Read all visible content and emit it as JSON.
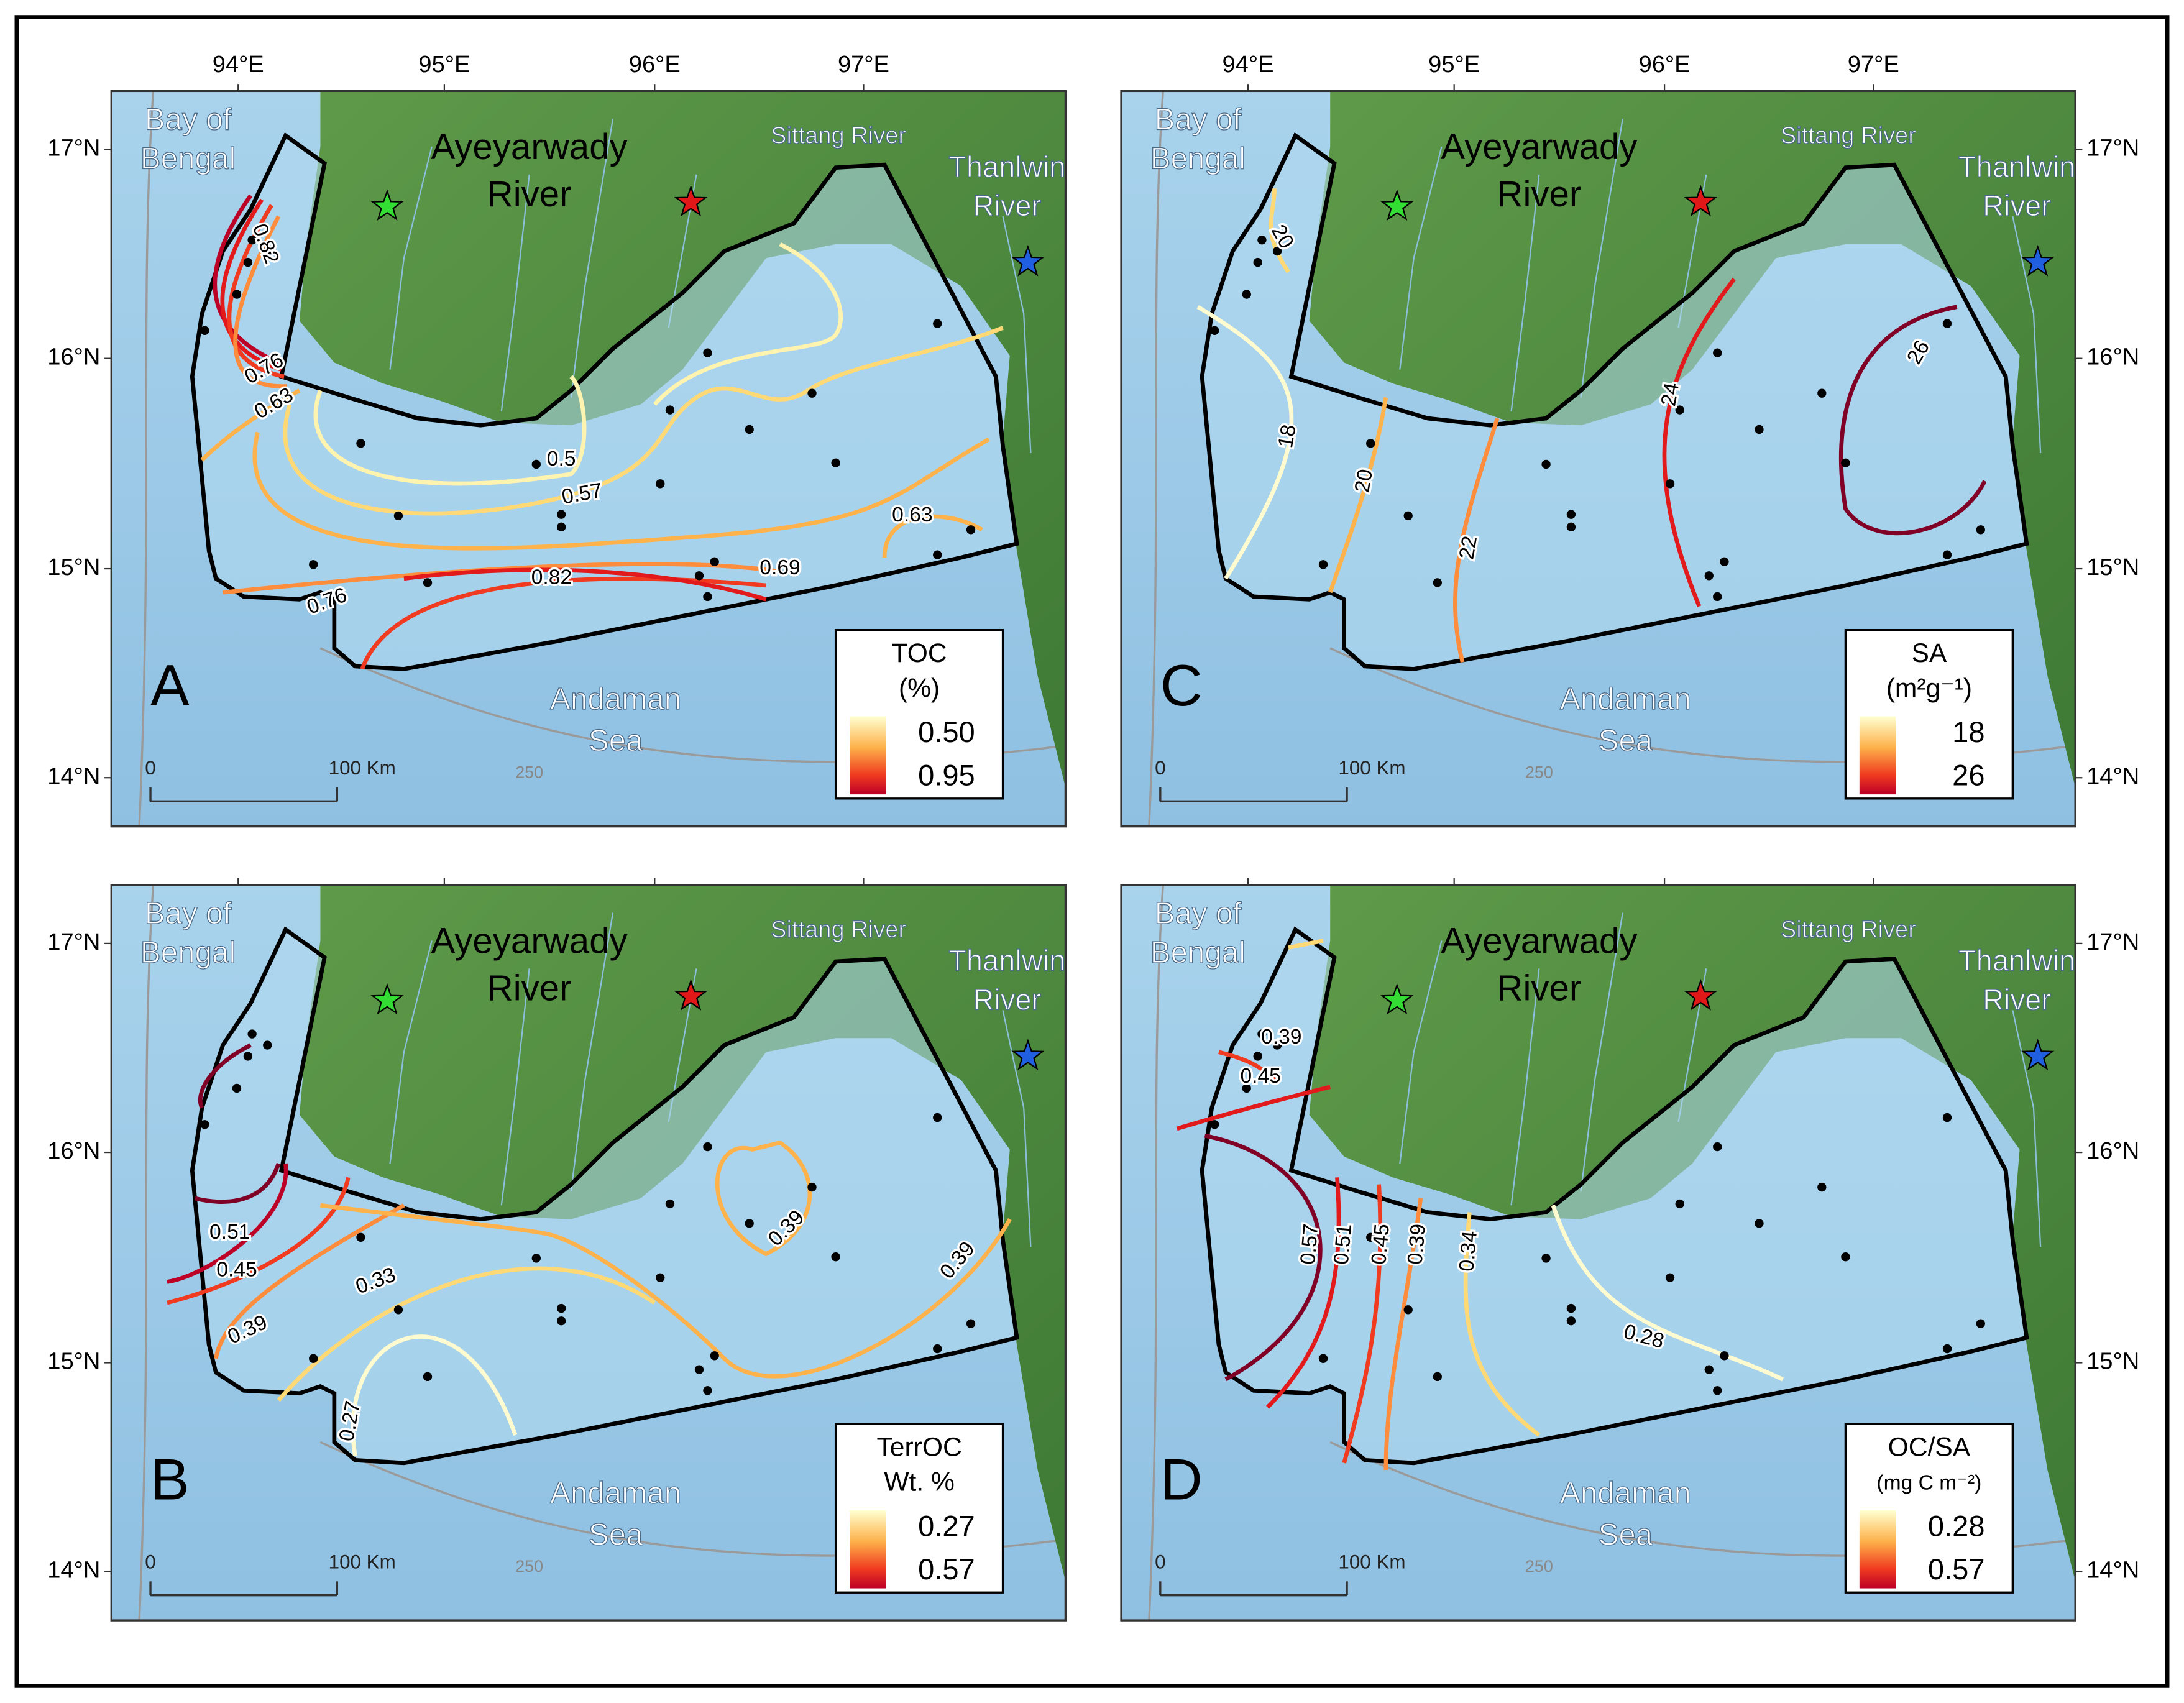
{
  "x_tick_labels": [
    "94°E",
    "95°E",
    "96°E",
    "97°E"
  ],
  "y_tick_labels": [
    "17°N",
    "16°N",
    "15°N",
    "14°N"
  ],
  "places": {
    "bay": [
      "Bay of",
      "Bengal"
    ],
    "ayeyarwady": [
      "Ayeyarwady",
      "River"
    ],
    "sittang": "Sittang River",
    "thanlwin": [
      "Thanlwin",
      "River"
    ],
    "andaman": [
      "Andaman",
      "Sea"
    ]
  },
  "scale_bar": {
    "start": "0",
    "end": "100 Km"
  },
  "isobath_label": "250",
  "panels": [
    {
      "letter": "A",
      "legend": {
        "title": [
          "TOC",
          "(%)"
        ],
        "low": "0.50",
        "high": "0.95"
      },
      "contour_labels": [
        "0.82",
        "0.76",
        "0.63",
        "0.5",
        "0.57",
        "0.63",
        "0.69",
        "0.82",
        "0.76"
      ]
    },
    {
      "letter": "B",
      "legend": {
        "title": [
          "TerrOC",
          "Wt. %"
        ],
        "low": "0.27",
        "high": "0.57"
      },
      "contour_labels": [
        "0.51",
        "0.45",
        "0.39",
        "0.33",
        "0.27",
        "0.39",
        "0.39"
      ]
    },
    {
      "letter": "C",
      "legend": {
        "title": [
          "SA",
          "(m²g⁻¹)"
        ],
        "low": "18",
        "high": "26"
      },
      "contour_labels": [
        "20",
        "18",
        "20",
        "22",
        "24",
        "26"
      ]
    },
    {
      "letter": "D",
      "legend": {
        "title": [
          "OC/SA",
          "(mg C m⁻²)"
        ],
        "low": "0.28",
        "high": "0.57"
      },
      "contour_labels": [
        "0.39",
        "0.45",
        "0.57",
        "0.51",
        "0.45",
        "0.39",
        "0.34",
        "0.28"
      ]
    }
  ]
}
